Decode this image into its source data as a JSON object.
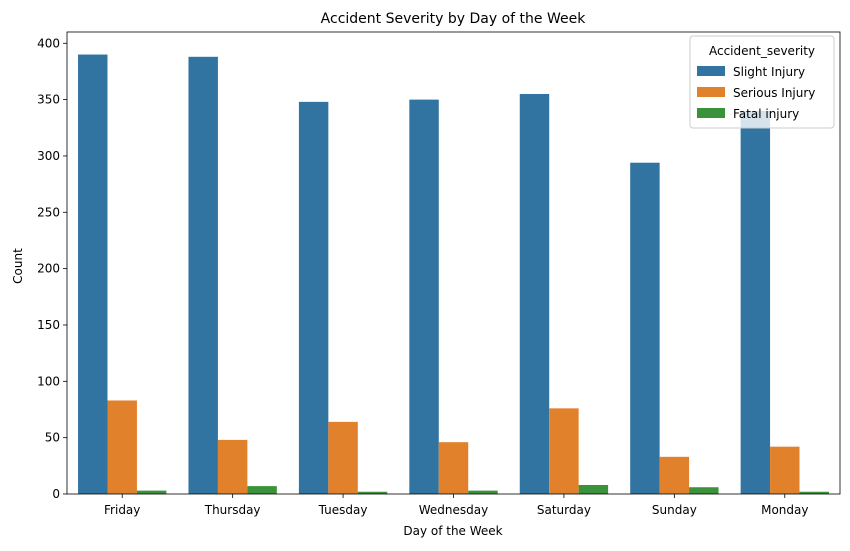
{
  "chart_data": {
    "type": "bar",
    "title": "Accident Severity by Day of the Week",
    "xlabel": "Day of the Week",
    "ylabel": "Count",
    "ylim": [
      0,
      410
    ],
    "yticks": [
      0,
      50,
      100,
      150,
      200,
      250,
      300,
      350,
      400
    ],
    "categories": [
      "Friday",
      "Thursday",
      "Tuesday",
      "Wednesday",
      "Saturday",
      "Sunday",
      "Monday"
    ],
    "series": [
      {
        "name": "Slight Injury",
        "color": "#3274a1",
        "values": [
          390,
          388,
          348,
          350,
          355,
          294,
          340
        ]
      },
      {
        "name": "Serious Injury",
        "color": "#e1812c",
        "values": [
          83,
          48,
          64,
          46,
          76,
          33,
          42
        ]
      },
      {
        "name": "Fatal injury",
        "color": "#3a923a",
        "values": [
          3,
          7,
          2,
          3,
          8,
          6,
          2
        ]
      }
    ],
    "legend": {
      "title": "Accident_severity",
      "placement": "top-right"
    },
    "grid": false
  }
}
